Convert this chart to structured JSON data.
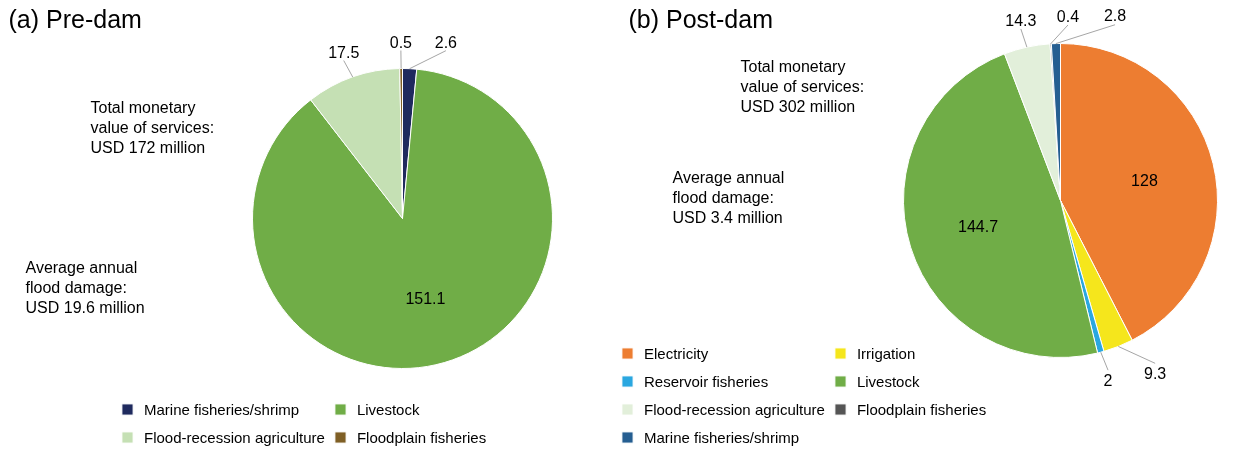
{
  "chart_data": [
    {
      "type": "pie",
      "title": "(a) Pre-dam",
      "categories": [
        "Marine fisheries/shrimp",
        "Livestock",
        "Flood-recession agriculture",
        "Floodplain fisheries"
      ],
      "values": [
        2.6,
        151.1,
        17.5,
        0.5
      ],
      "colors": [
        "#1f2a5e",
        "#70ad47",
        "#c5e0b4",
        "#7f5f25"
      ],
      "data_labels": true,
      "legend": "bottom",
      "annotations": [
        "Total monetary\nvalue of services:\nUSD 172 million",
        "Average annual\nflood damage:\nUSD 19.6 million"
      ]
    },
    {
      "type": "pie",
      "title": "(b) Post-dam",
      "categories": [
        "Electricity",
        "Irrigation",
        "Reservoir fisheries",
        "Livestock",
        "Flood-recession agriculture",
        "Floodplain fisheries",
        "Marine fisheries/shrimp"
      ],
      "values": [
        128,
        9.3,
        2,
        144.7,
        14.3,
        0.4,
        2.8
      ],
      "colors": [
        "#ed7d31",
        "#f5e61c",
        "#2aa7e0",
        "#70ad47",
        "#e2efda",
        "#555555",
        "#255e91"
      ],
      "data_labels": true,
      "legend": "bottom left",
      "annotations": [
        "Total monetary\nvalue of services:\nUSD 302 million",
        "Average annual\nflood damage:\nUSD 3.4 million"
      ]
    }
  ]
}
